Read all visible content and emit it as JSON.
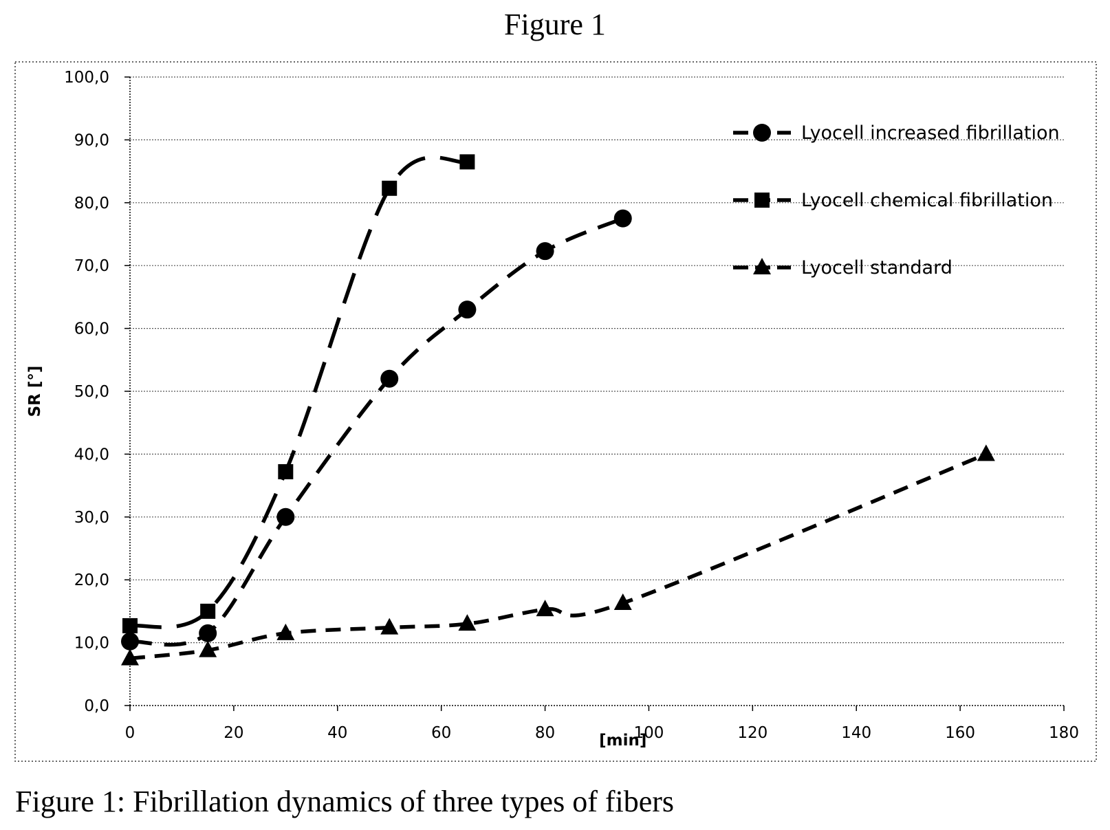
{
  "figure": {
    "title": "Figure 1",
    "caption": "Figure 1: Fibrillation dynamics of three types of fibers"
  },
  "chart_data": {
    "type": "line",
    "xlabel": "[min]",
    "ylabel": "SR [°]",
    "xlim": [
      0,
      180
    ],
    "ylim": [
      0,
      100
    ],
    "xticks": [
      0,
      20,
      40,
      60,
      80,
      100,
      120,
      140,
      160,
      180
    ],
    "yticks": [
      "0,0",
      "10,0",
      "20,0",
      "30,0",
      "40,0",
      "50,0",
      "60,0",
      "70,0",
      "80,0",
      "90,0",
      "100,0"
    ],
    "grid": true,
    "legend_position": "top-right",
    "series": [
      {
        "name": "Lyocell increased fibrillation",
        "marker": "circle",
        "x": [
          0,
          15,
          30,
          50,
          65,
          80,
          95
        ],
        "y": [
          10.2,
          11.5,
          30,
          52,
          63,
          72.3,
          77.5
        ]
      },
      {
        "name": "Lyocell chemical fibrillation",
        "marker": "square",
        "x": [
          0,
          15,
          30,
          50,
          65
        ],
        "y": [
          12.7,
          15,
          37.2,
          82.3,
          86.5
        ]
      },
      {
        "name": "Lyocell standard",
        "marker": "triangle",
        "x": [
          0,
          15,
          30,
          50,
          65,
          80,
          95,
          165
        ],
        "y": [
          7.5,
          8.8,
          11.5,
          12.4,
          13,
          15.3,
          16.3,
          40
        ]
      }
    ]
  }
}
